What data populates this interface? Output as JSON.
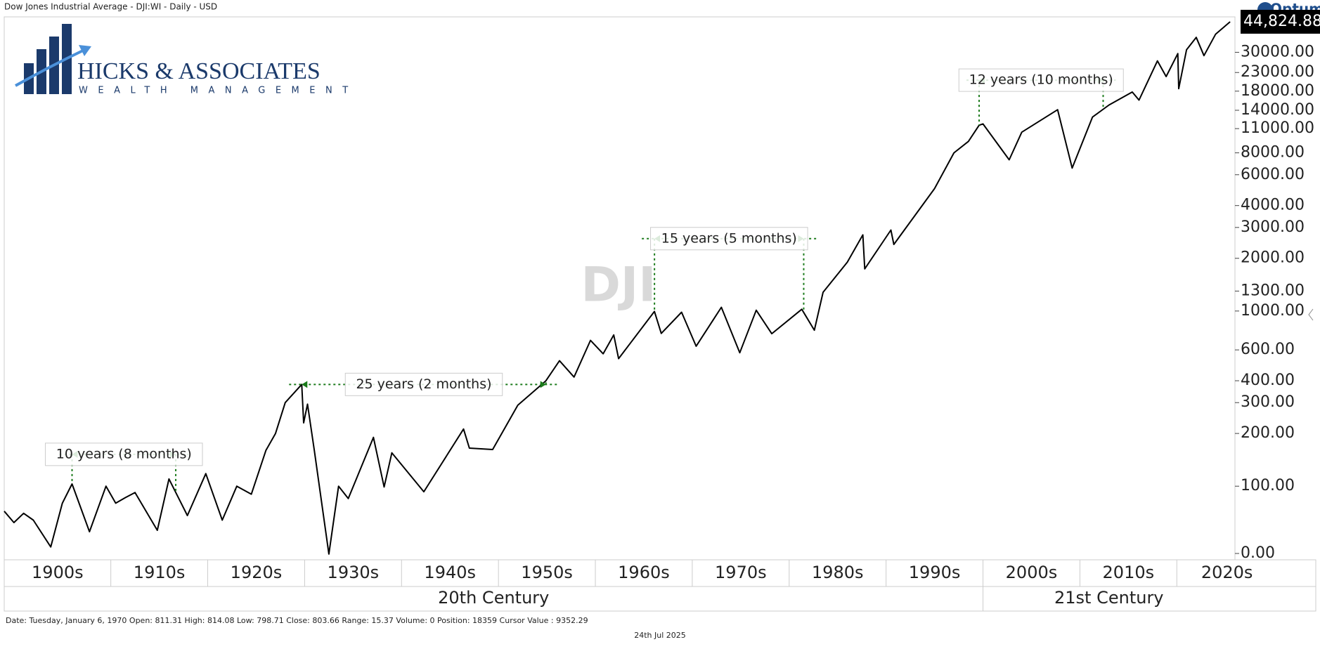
{
  "chart_data": {
    "type": "line",
    "title": "Dow Jones Industrial Average - DJI:WI - Daily - USD",
    "brand": "Optuma",
    "watermark": "DJI",
    "logo_text": "HICKS & ASSOCIATES",
    "logo_subtext": "WEALTH MANAGEMENT",
    "status": "Date: Tuesday, January 6, 1970 Open: 811.31 High: 814.08 Low: 798.71 Close: 803.66 Range: 15.37 Volume: 0 Position: 18359 Cursor Value : 9352.29",
    "footer": "24th Jul 2025",
    "last_value": {
      "value": 44824.88,
      "label": "44,824.88"
    },
    "color": "#000000",
    "log_scale": true,
    "x": [
      1899,
      1900,
      1901,
      1902,
      1903.8,
      1905,
      1906,
      1907.8,
      1909.5,
      1910.5,
      1911.5,
      1912.5,
      1914.8,
      1916,
      1917.9,
      1919.8,
      1921.5,
      1923,
      1924.5,
      1926,
      1927,
      1928,
      1929.7,
      1929.9,
      1930.3,
      1931,
      1932.5,
      1933.5,
      1934.5,
      1937.1,
      1938.2,
      1939,
      1942.3,
      1946.4,
      1947,
      1949.4,
      1952,
      1954.9,
      1956.3,
      1957.8,
      1959.5,
      1960.8,
      1961.9,
      1962.4,
      1966.1,
      1966.8,
      1968.9,
      1970.4,
      1973.0,
      1974.9,
      1976.6,
      1978.2,
      1981.3,
      1982.6,
      1983.5,
      1986,
      1987.6,
      1987.8,
      1990.5,
      1990.8,
      1995,
      1997,
      1998.5,
      1999.6,
      2000,
      2002.7,
      2004,
      2007.7,
      2009.2,
      2011.3,
      2013,
      2015.4,
      2016.1,
      2018,
      2018.9,
      2020.1,
      2020.2,
      2021,
      2022,
      2022.8,
      2024,
      2025.5
    ],
    "values": [
      72,
      62,
      70,
      64,
      45,
      80,
      103,
      55,
      100,
      80,
      86,
      92,
      56,
      110,
      68,
      118,
      64,
      100,
      90,
      160,
      200,
      300,
      381,
      230,
      294,
      160,
      41,
      100,
      85,
      190,
      99,
      155,
      93,
      212,
      165,
      162,
      290,
      400,
      520,
      420,
      680,
      570,
      730,
      535,
      995,
      745,
      985,
      630,
      1050,
      578,
      1010,
      742,
      1024,
      777,
      1280,
      1900,
      2720,
      1740,
      2900,
      2400,
      5000,
      8000,
      9300,
      11500,
      11700,
      7300,
      10500,
      14100,
      6550,
      12800,
      15000,
      17800,
      16000,
      26800,
      21800,
      29500,
      18600,
      31000,
      36500,
      28700,
      38000,
      44800
    ],
    "xlim": [
      1899,
      2026
    ],
    "ylim": [
      38,
      47800
    ],
    "yticks": [
      {
        "value": 0,
        "label": "0.00"
      },
      {
        "value": 100,
        "label": "100.00"
      },
      {
        "value": 200,
        "label": "200.00"
      },
      {
        "value": 300,
        "label": "300.00"
      },
      {
        "value": 400,
        "label": "400.00"
      },
      {
        "value": 600,
        "label": "600.00"
      },
      {
        "value": 1000,
        "label": "1000.00"
      },
      {
        "value": 1300,
        "label": "1300.00"
      },
      {
        "value": 2000,
        "label": "2000.00"
      },
      {
        "value": 3000,
        "label": "3000.00"
      },
      {
        "value": 4000,
        "label": "4000.00"
      },
      {
        "value": 6000,
        "label": "6000.00"
      },
      {
        "value": 8000,
        "label": "8000.00"
      },
      {
        "value": 11000,
        "label": "11000.00"
      },
      {
        "value": 14000,
        "label": "14000.00"
      },
      {
        "value": 18000,
        "label": "18000.00"
      },
      {
        "value": 23000,
        "label": "23000.00"
      },
      {
        "value": 30000,
        "label": "30000.00"
      }
    ],
    "xticks": [
      {
        "value": 1899,
        "label": "1900s"
      },
      {
        "value": 1910,
        "label": "1910s"
      },
      {
        "value": 1920,
        "label": "1920s"
      },
      {
        "value": 1930,
        "label": "1930s"
      },
      {
        "value": 1940,
        "label": "1940s"
      },
      {
        "value": 1950,
        "label": "1950s"
      },
      {
        "value": 1960,
        "label": "1960s"
      },
      {
        "value": 1970,
        "label": "1970s"
      },
      {
        "value": 1980,
        "label": "1980s"
      },
      {
        "value": 1990,
        "label": "1990s"
      },
      {
        "value": 2000,
        "label": "2000s"
      },
      {
        "value": 2010,
        "label": "2010s"
      },
      {
        "value": 2020,
        "label": "2020s"
      }
    ],
    "centuries": [
      {
        "value": 1899,
        "label": "20th Century"
      },
      {
        "value": 2000,
        "label": "21st Century"
      }
    ],
    "annotations": [
      {
        "text": "10 years (8 months)",
        "x": [
          1906,
          1916.7
        ],
        "y": 152
      },
      {
        "text": "25 years (2 months)",
        "x": [
          1929.7,
          1954.9
        ],
        "y": 381
      },
      {
        "text": "15 years (5 months)",
        "x": [
          1966.1,
          1981.5
        ],
        "y": 2590
      },
      {
        "text": "12 years (10 months)",
        "x": [
          1999.6,
          2012.4
        ],
        "y": 20800
      }
    ]
  }
}
